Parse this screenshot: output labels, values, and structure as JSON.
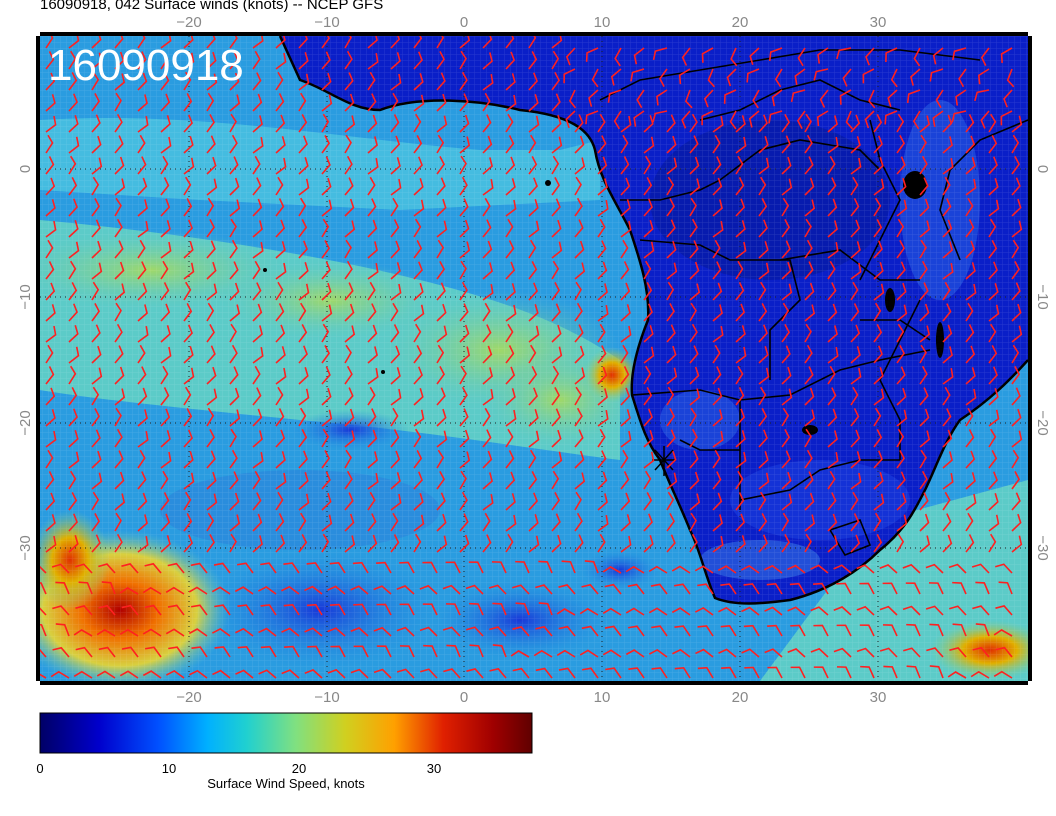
{
  "title": "16090918, 042 Surface winds (knots) -- NCEP GFS",
  "stamp": "16090918",
  "map": {
    "lon_range": [
      -31,
      41
    ],
    "lat_range": [
      -40,
      10
    ],
    "lon_ticks": [
      "−20",
      "−10",
      "0",
      "10",
      "20",
      "30"
    ],
    "lat_ticks": [
      "0",
      "−10",
      "−20",
      "−30"
    ],
    "barb_color": "#ff2020",
    "storm_marker_color": "#000000"
  },
  "colorbar": {
    "ticks": [
      "0",
      "10",
      "20",
      "30"
    ],
    "range": [
      0,
      38
    ],
    "label": "Surface Wind Speed, knots",
    "colors": [
      "#000066",
      "#0000cc",
      "#0050ff",
      "#00b0ff",
      "#20d0d0",
      "#80e080",
      "#d0d020",
      "#ffa000",
      "#e02000",
      "#a00000",
      "#600000"
    ]
  }
}
